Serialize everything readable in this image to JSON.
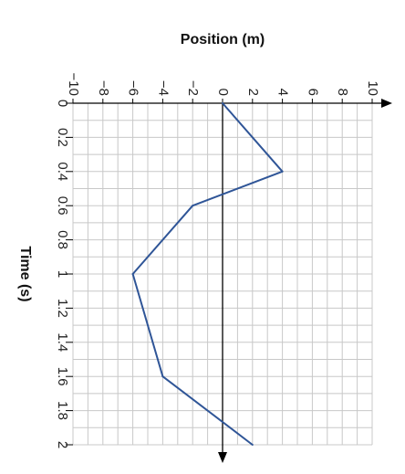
{
  "chart_data": {
    "type": "line",
    "orientation": "rotated",
    "title": "",
    "xlabel": "Time (s)",
    "ylabel": "Position (m)",
    "x": [
      0,
      0.4,
      0.6,
      1.0,
      1.6,
      2.0
    ],
    "series": [
      {
        "values": [
          0,
          4,
          -2,
          -6,
          -4,
          2
        ]
      }
    ],
    "xlim": [
      0,
      2
    ],
    "ylim": [
      -10,
      10
    ],
    "x_ticks": [
      "0",
      "0.2",
      "0.4",
      "0.6",
      "0.8",
      "1",
      "1.2",
      "1.4",
      "1.6",
      "1.8",
      "2"
    ],
    "y_ticks": [
      "−10",
      "−8",
      "−6",
      "−4",
      "−2",
      "0",
      "2",
      "4",
      "6",
      "8",
      "10"
    ],
    "grid": true,
    "colors": {
      "line": "#2f5597",
      "grid": "#c8c8c8",
      "axis": "#000000"
    }
  }
}
